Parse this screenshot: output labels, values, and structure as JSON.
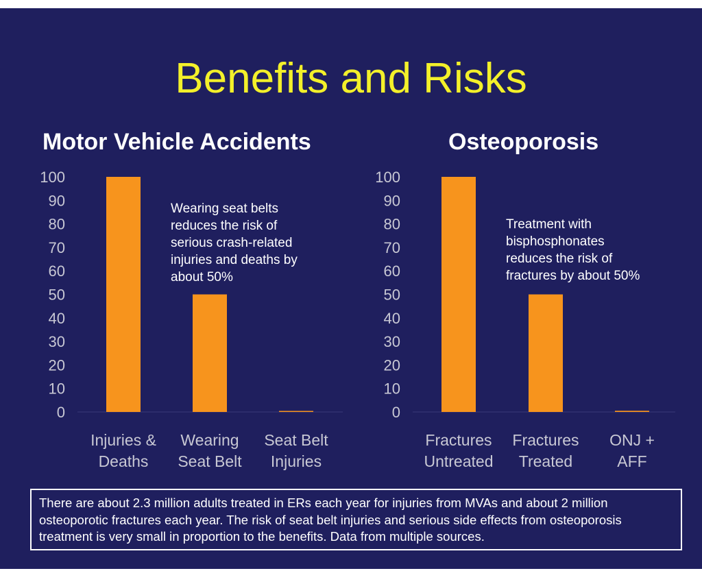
{
  "slide": {
    "title": "Benefits and Risks",
    "footer": "There are about 2.3 million adults treated in ERs each year for injuries from MVAs and about 2 million osteoporotic fractures each year. The risk of seat belt injuries and serious side effects from osteoporosis treatment is very small in proportion to the benefits. Data from multiple sources.",
    "colors": {
      "background": "#1f1f5e",
      "title": "#f3f02a",
      "bar": "#f7941d",
      "axis_text": "#c8c8d4"
    }
  },
  "chart_data": [
    {
      "type": "bar",
      "title": "Motor Vehicle Accidents",
      "categories": [
        "Injuries & Deaths",
        "Wearing Seat Belt",
        "Seat Belt Injuries"
      ],
      "category_lines": [
        [
          "Injuries &",
          "Deaths"
        ],
        [
          "Wearing",
          "Seat Belt"
        ],
        [
          "Seat Belt",
          "Injuries"
        ]
      ],
      "values": [
        100,
        50,
        0
      ],
      "ylim": [
        0,
        100
      ],
      "yticks": [
        "0",
        "10",
        "20",
        "30",
        "40",
        "50",
        "60",
        "70",
        "80",
        "90",
        "100"
      ],
      "xlabel": "",
      "ylabel": "",
      "grid": false,
      "annotation": "Wearing seat belts\nreduces the risk of\nserious crash-related\ninjuries and deaths by\nabout 50%"
    },
    {
      "type": "bar",
      "title": "Osteoporosis",
      "categories": [
        "Fractures Untreated",
        "Fractures Treated",
        "ONJ + AFF"
      ],
      "category_lines": [
        [
          "Fractures",
          "Untreated"
        ],
        [
          "Fractures",
          "Treated"
        ],
        [
          "ONJ +",
          "AFF"
        ]
      ],
      "values": [
        100,
        50,
        0.5
      ],
      "ylim": [
        0,
        100
      ],
      "yticks": [
        "0",
        "10",
        "20",
        "30",
        "40",
        "50",
        "60",
        "70",
        "80",
        "90",
        "100"
      ],
      "xlabel": "",
      "ylabel": "",
      "grid": false,
      "annotation": "Treatment with\nbisphosphonates\nreduces the risk of\nfractures by about 50%"
    }
  ]
}
